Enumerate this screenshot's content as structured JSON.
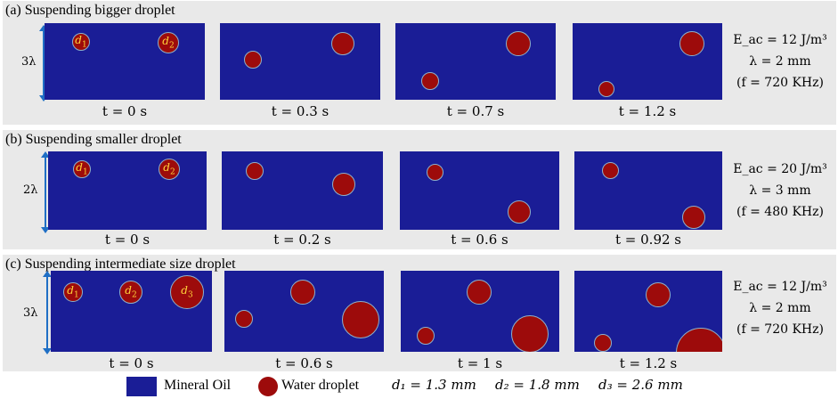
{
  "rows": [
    {
      "title": "(a) Suspending bigger droplet",
      "scale": "3λ",
      "times": [
        "t = 0 s",
        "t = 0.3 s",
        "t = 0.7 s",
        "t = 1.2 s"
      ],
      "params": [
        "E_ac = 12 J/m³",
        "λ = 2 mm",
        "(f = 720 KHz)"
      ]
    },
    {
      "title": "(b) Suspending smaller droplet",
      "scale": "2λ",
      "times": [
        "t = 0 s",
        "t = 0.2 s",
        "t = 0.6 s",
        "t = 0.92 s"
      ],
      "params": [
        "E_ac = 20 J/m³",
        "λ = 3 mm",
        "(f = 480 KHz)"
      ]
    },
    {
      "title": "(c) Suspending intermediate size droplet",
      "scale": "3λ",
      "times": [
        "t = 0 s",
        "t = 0.6 s",
        "t = 1 s",
        "t = 1.2 s"
      ],
      "params": [
        "E_ac = 12 J/m³",
        "λ = 2 mm",
        "(f = 720 KHz)"
      ]
    }
  ],
  "droplet_labels": {
    "d1": "d",
    "d2": "d",
    "d3": "d",
    "s1": "1",
    "s2": "2",
    "s3": "3"
  },
  "legend": {
    "oil": "Mineral Oil",
    "water": "Water droplet",
    "d1": "d₁ = 1.3 mm",
    "d2": "d₂ = 1.8 mm",
    "d3": "d₃ = 2.6 mm"
  },
  "colors": {
    "oil": "#1a1d96",
    "water": "#9d0b0b",
    "label": "#ffd23a"
  }
}
